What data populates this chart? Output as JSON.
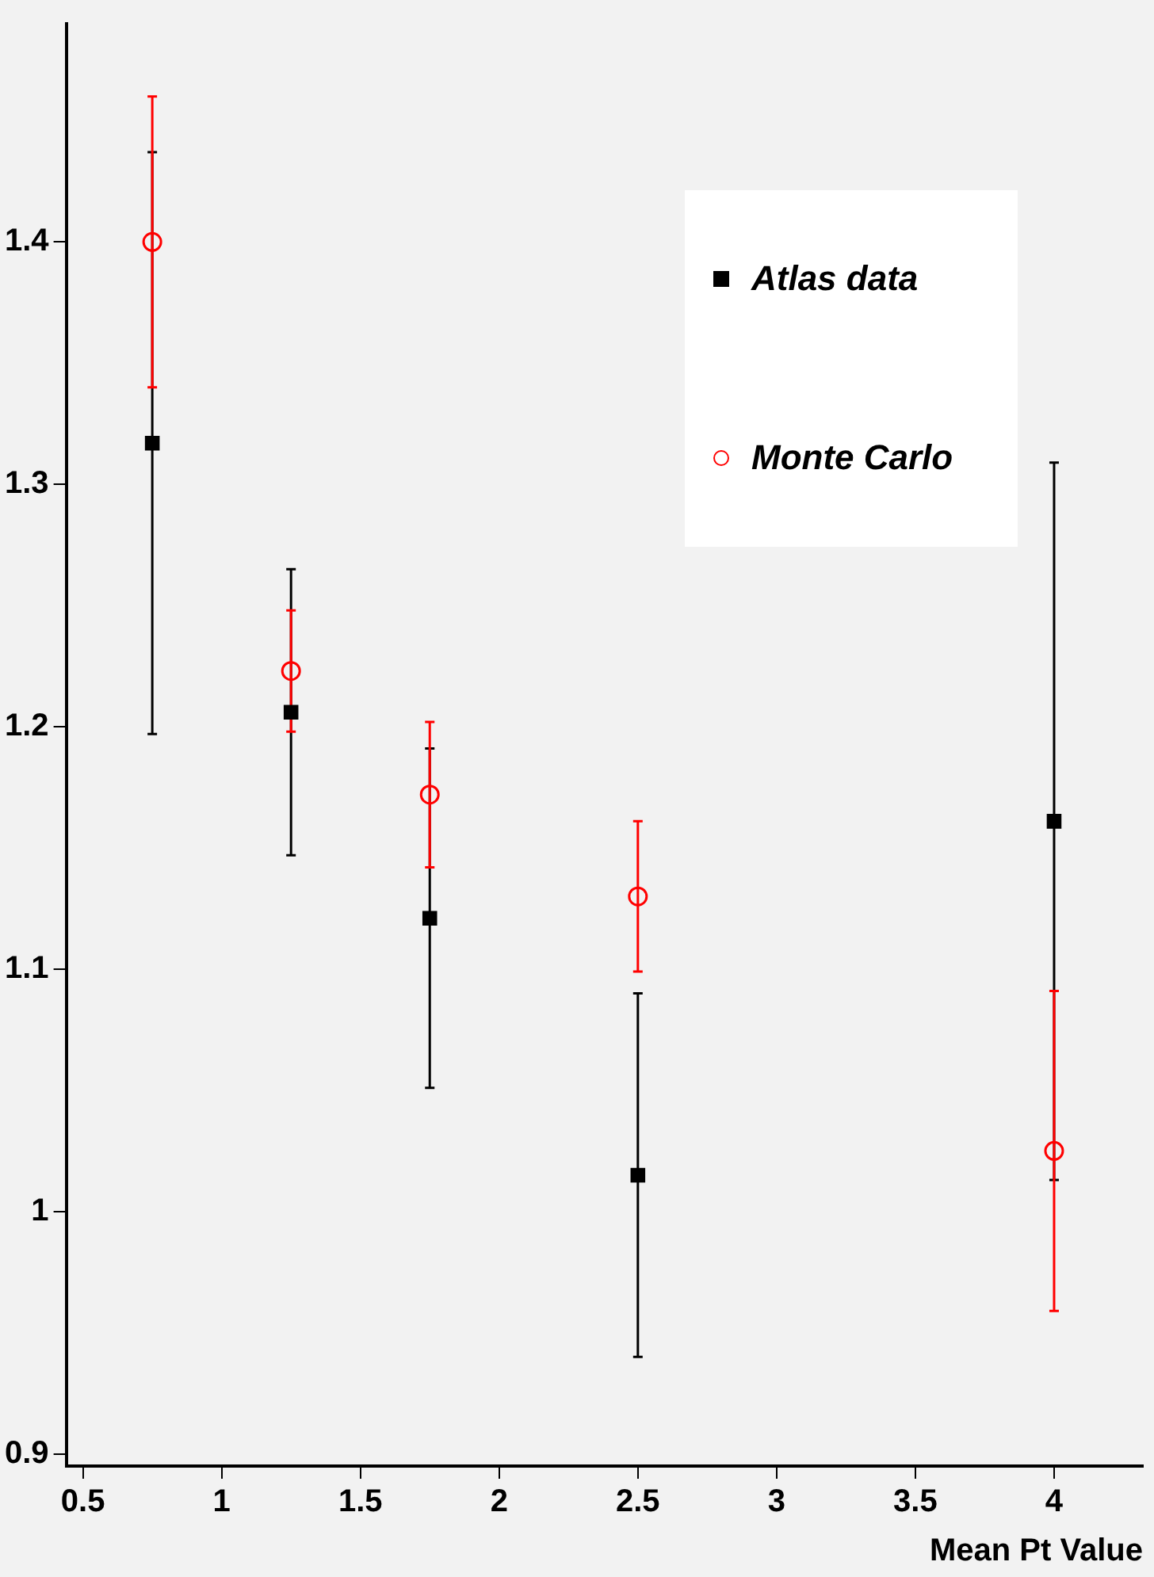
{
  "chart_data": {
    "type": "scatter",
    "xlabel": "Mean Pt Value",
    "xlim": [
      0.44,
      4.32
    ],
    "ylim": [
      0.895,
      1.49
    ],
    "xticks": [
      0.5,
      1,
      1.5,
      2,
      2.5,
      3,
      3.5,
      4
    ],
    "yticks": [
      0.9,
      1,
      1.1,
      1.2,
      1.3,
      1.4
    ],
    "grid": false,
    "legend": "top right",
    "series": [
      {
        "name": "Atlas data",
        "color": "#000000",
        "marker": "square",
        "x": [
          0.75,
          1.25,
          1.75,
          2.5,
          4
        ],
        "values": [
          1.317,
          1.206,
          1.121,
          1.015,
          1.161
        ],
        "errors": [
          0.12,
          0.059,
          0.07,
          0.075,
          0.148
        ]
      },
      {
        "name": "Monte Carlo",
        "color": "#ff0000",
        "marker": "circle",
        "x": [
          0.75,
          1.25,
          1.75,
          2.5,
          4
        ],
        "values": [
          1.4,
          1.223,
          1.172,
          1.13,
          1.025
        ],
        "errors": [
          0.06,
          0.025,
          0.03,
          0.031,
          0.066
        ]
      }
    ]
  }
}
